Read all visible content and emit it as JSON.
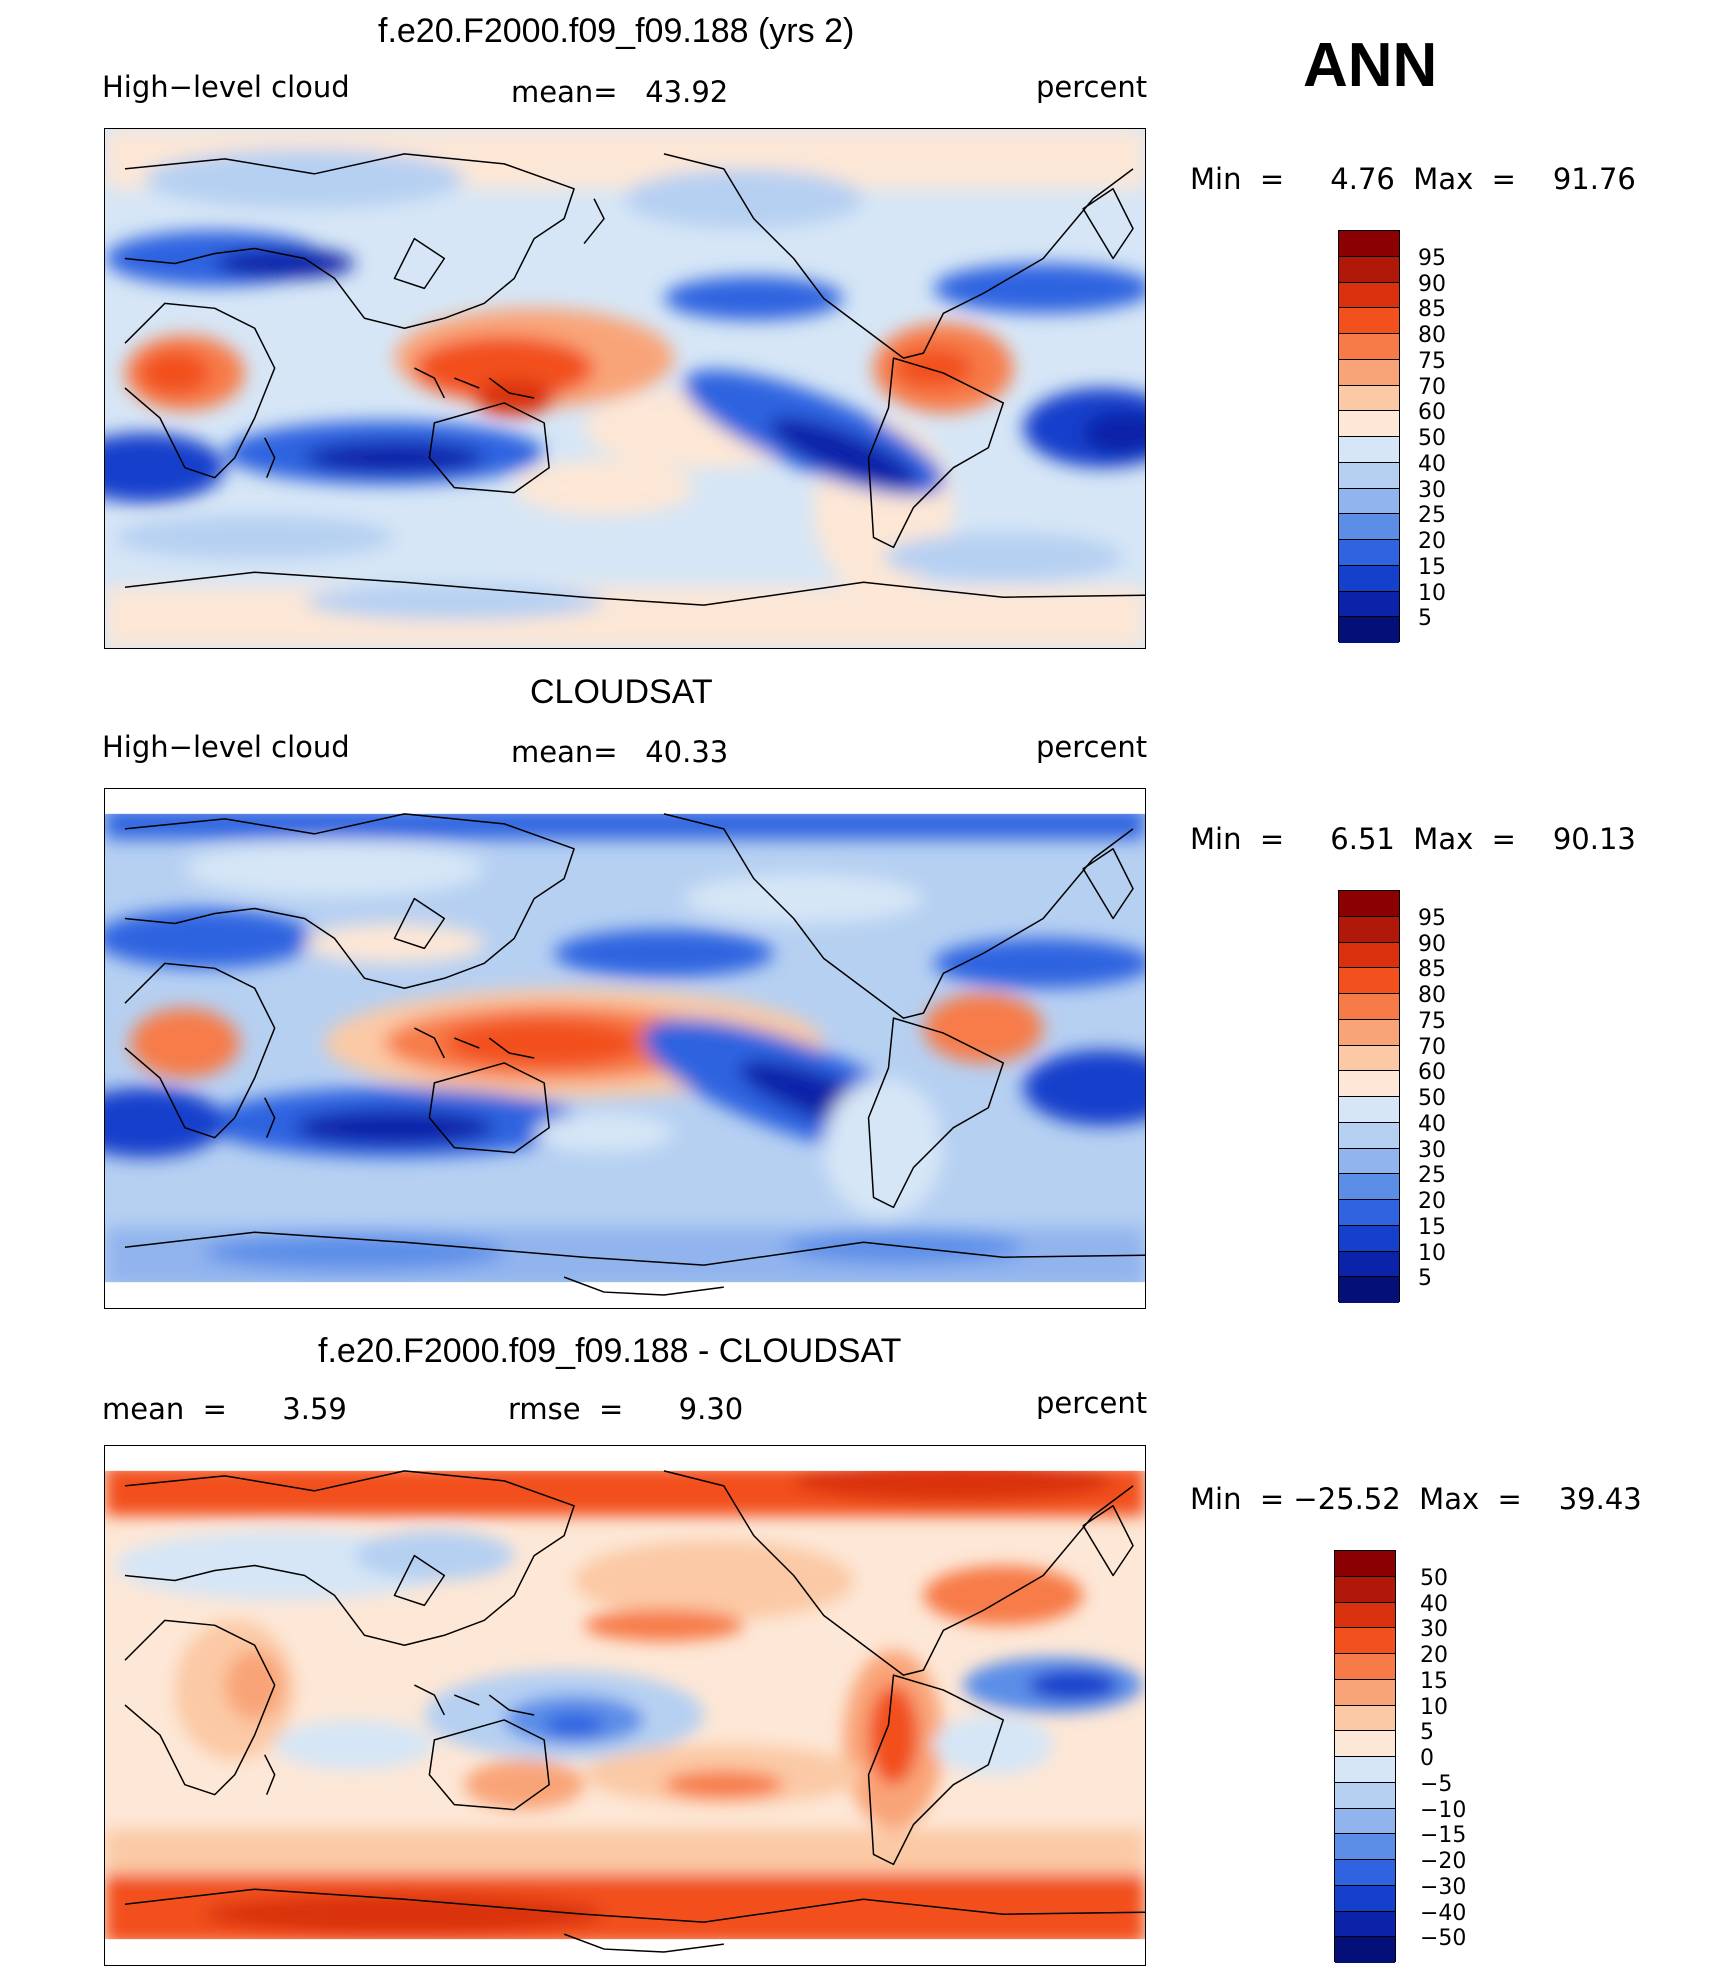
{
  "season": "ANN",
  "panels": [
    {
      "title": "f.e20.F2000.f09_f09.188 (yrs 2)",
      "left_label": "High−level cloud",
      "middle_label": "mean=   43.92",
      "units": "percent",
      "minmax": "Min  =     4.76  Max  =    91.76",
      "colorbar_levels": [
        "95",
        "90",
        "85",
        "80",
        "75",
        "70",
        "60",
        "50",
        "40",
        "30",
        "25",
        "20",
        "15",
        "10",
        "5"
      ],
      "colors": [
        "#8b0000",
        "#b0190a",
        "#d9300e",
        "#f2501c",
        "#f77b48",
        "#f9a478",
        "#fbc9a5",
        "#fde7d6",
        "#d6e6f6",
        "#b6d0f2",
        "#91b4ee",
        "#5c8ee8",
        "#2f63e0",
        "#1440cc",
        "#0a23a8",
        "#050f78"
      ]
    },
    {
      "title": "CLOUDSAT",
      "left_label": "High−level cloud",
      "middle_label": "mean=   40.33",
      "units": "percent",
      "minmax": "Min  =     6.51  Max  =    90.13",
      "colorbar_levels": [
        "95",
        "90",
        "85",
        "80",
        "75",
        "70",
        "60",
        "50",
        "40",
        "30",
        "25",
        "20",
        "15",
        "10",
        "5"
      ],
      "colors": [
        "#8b0000",
        "#b0190a",
        "#d9300e",
        "#f2501c",
        "#f77b48",
        "#f9a478",
        "#fbc9a5",
        "#fde7d6",
        "#d6e6f6",
        "#b6d0f2",
        "#91b4ee",
        "#5c8ee8",
        "#2f63e0",
        "#1440cc",
        "#0a23a8",
        "#050f78"
      ]
    },
    {
      "title": "f.e20.F2000.f09_f09.188 - CLOUDSAT",
      "left_label": "mean  =      3.59",
      "middle_label": "rmse  =      9.30",
      "units": "percent",
      "minmax": "Min  = −25.52  Max  =    39.43",
      "colorbar_levels": [
        "50",
        "40",
        "30",
        "20",
        "15",
        "10",
        "5",
        "0",
        "−5",
        "−10",
        "−15",
        "−20",
        "−30",
        "−40",
        "−50"
      ],
      "colors": [
        "#8b0000",
        "#b0190a",
        "#d9300e",
        "#f2501c",
        "#f77b48",
        "#f9a478",
        "#fbc9a5",
        "#fde7d6",
        "#d6e6f6",
        "#b6d0f2",
        "#91b4ee",
        "#5c8ee8",
        "#2f63e0",
        "#1440cc",
        "#0a23a8",
        "#050f78"
      ]
    }
  ]
}
